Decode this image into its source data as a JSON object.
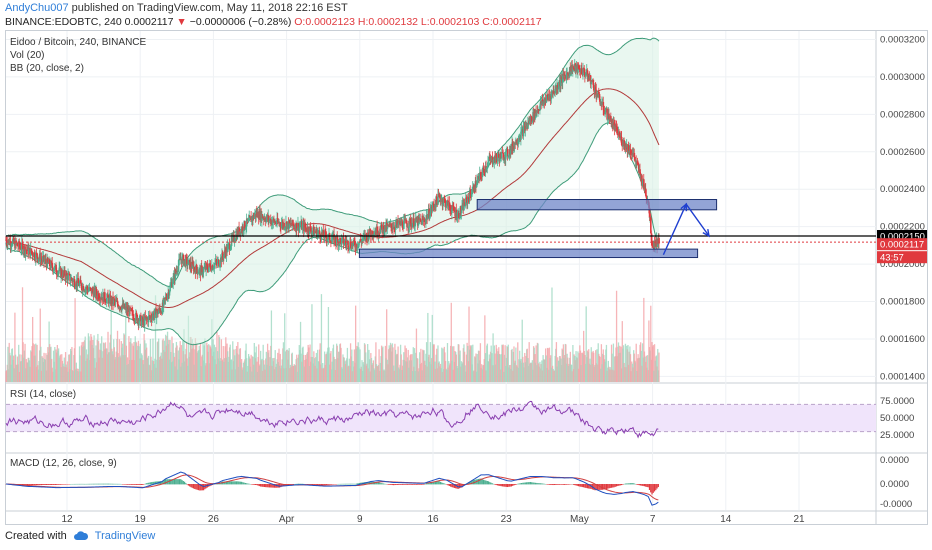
{
  "header": {
    "author": "AndyChu007",
    "published": "published on TradingView.com, May 11, 2018 22:16 EST",
    "symbol_line_prefix": "BINANCE:EDOBTC, 240",
    "last": "0.0002117",
    "change": "−0.0000006 (−0.28%)",
    "ohlc": "O:0.0002123 H:0.0002132 L:0.0002103 C:0.0002117"
  },
  "panels": {
    "main": {
      "title": "Eidoo / Bitcoin, 240, BINANCE",
      "vol": "Vol (20)",
      "bb": "BB (20, close, 2)"
    },
    "rsi": {
      "title": "RSI (14, close)",
      "ticks": [
        "75.0000",
        "50.0000",
        "25.0000"
      ]
    },
    "macd": {
      "title": "MACD (12, 26, close, 9)",
      "ticks": [
        "0.0000",
        "0.0000",
        "-0.0000"
      ]
    }
  },
  "price_badges": {
    "current": "0.0002117",
    "countdown": "43:57",
    "level": "0.0002150"
  },
  "footer": {
    "created": "Created with",
    "brand": "TradingView"
  },
  "colors": {
    "up": "#4bae8f",
    "down": "#e0393e",
    "bb": "#3f9c7a",
    "ma": "#b23a3a",
    "rsi": "#8a3fb0",
    "macd": "#2050c0",
    "signal": "#d04040",
    "zone": "#6f86c8",
    "arrow": "#1f3fd0"
  },
  "chart_data": {
    "type": "candlestick",
    "title": "Eidoo / Bitcoin, 240, BINANCE",
    "ylim": [
      0.000137,
      0.000324
    ],
    "price_ticks": [
      "0.0003200",
      "0.0003000",
      "0.0002800",
      "0.0002600",
      "0.0002400",
      "0.0002200",
      "0.0002000",
      "0.0001800",
      "0.0001600",
      "0.0001400"
    ],
    "x_ticks": [
      "12",
      "19",
      "26",
      "Apr",
      "9",
      "16",
      "23",
      "May",
      "7",
      "14",
      "21"
    ],
    "close_path": [
      [
        0,
        0.000213
      ],
      [
        7,
        0.000206
      ],
      [
        14,
        0.000196
      ],
      [
        21,
        0.000187
      ],
      [
        30,
        0.000178
      ],
      [
        36,
        0.000169
      ],
      [
        41,
        0.000176
      ],
      [
        46,
        0.000203
      ],
      [
        51,
        0.000196
      ],
      [
        56,
        0.000201
      ],
      [
        61,
        0.000217
      ],
      [
        66,
        0.000227
      ],
      [
        71,
        0.000222
      ],
      [
        78,
        0.00022
      ],
      [
        85,
        0.000214
      ],
      [
        92,
        0.00021
      ],
      [
        96,
        0.000217
      ],
      [
        103,
        0.000221
      ],
      [
        110,
        0.000223
      ],
      [
        114,
        0.000236
      ],
      [
        119,
        0.000226
      ],
      [
        121,
        0.000233
      ],
      [
        127,
        0.000255
      ],
      [
        132,
        0.000259
      ],
      [
        137,
        0.000274
      ],
      [
        141,
        0.000286
      ],
      [
        144,
        0.000292
      ],
      [
        146,
        0.000298
      ],
      [
        149,
        0.000305
      ],
      [
        152,
        0.000303
      ],
      [
        154,
        0.000298
      ],
      [
        157,
        0.000284
      ],
      [
        159,
        0.000277
      ],
      [
        162,
        0.000266
      ],
      [
        165,
        0.000259
      ],
      [
        167,
        0.000247
      ],
      [
        169,
        0.000234
      ],
      [
        170,
        0.000211
      ],
      [
        172,
        0.000212
      ]
    ],
    "series": [
      {
        "name": "BB (20, close, 2)",
        "type": "bands"
      },
      {
        "name": "Vol (20)",
        "type": "volume"
      },
      {
        "name": "RSI (14, close)",
        "ylim": [
          0,
          100
        ],
        "bands": [
          30,
          70
        ]
      },
      {
        "name": "MACD (12, 26, close, 9)",
        "type": "oscillator"
      }
    ],
    "zones": [
      {
        "from_day": 124,
        "to_day": 187,
        "low": 0.000229,
        "high": 0.0002345
      },
      {
        "from_day": 93,
        "to_day": 182,
        "low": 0.0002035,
        "high": 0.000208
      }
    ],
    "hlines": [
      {
        "label": "0.0002150",
        "value": 0.000215
      }
    ],
    "arrows": [
      {
        "points": [
          [
            173,
            0.000205
          ],
          [
            179,
            0.000232
          ],
          [
            185,
            0.000215
          ]
        ]
      }
    ],
    "current_price": 0.0002117
  }
}
